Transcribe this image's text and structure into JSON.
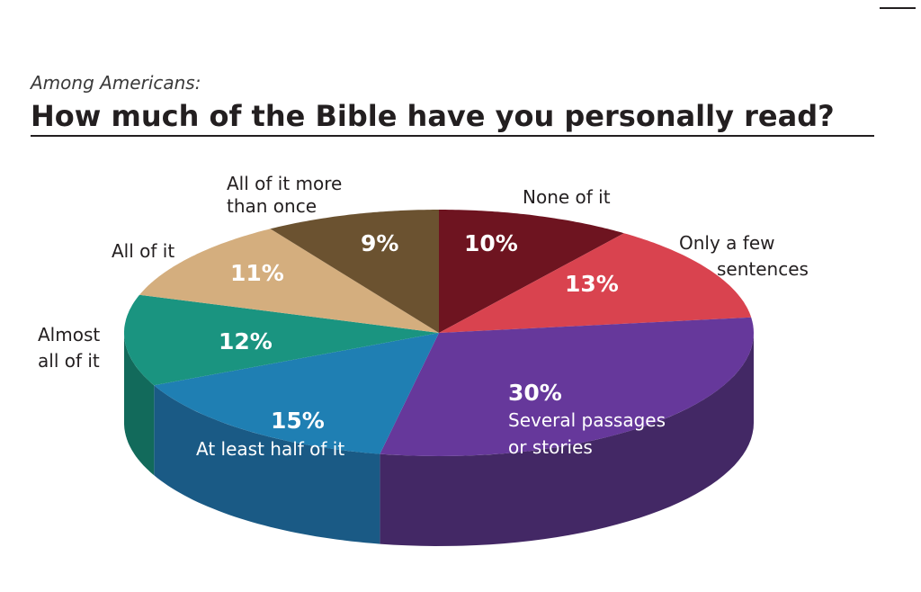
{
  "header": {
    "subtitle": "Among Americans:",
    "title": "How much of the Bible have you personally read?"
  },
  "chart_data": {
    "type": "pie",
    "subtitle": "Among Americans:",
    "title": "How much of the Bible have you personally read?",
    "slices": [
      {
        "label": "None of it",
        "value": 10,
        "value_label": "10%",
        "color": "#6e1420",
        "side_color": "#4a0d15"
      },
      {
        "label": "Only a few sentences",
        "value": 13,
        "value_label": "13%",
        "color": "#d9434f",
        "side_color": "#9c2f38"
      },
      {
        "label": "Several passages or stories",
        "value": 30,
        "value_label": "30%",
        "color": "#66389b",
        "side_color": "#432865"
      },
      {
        "label": "At least half of it",
        "value": 15,
        "value_label": "15%",
        "color": "#1f7fb3",
        "side_color": "#1a5a85"
      },
      {
        "label": "Almost all of it",
        "value": 12,
        "value_label": "12%",
        "color": "#1a9480",
        "side_color": "#126a5b"
      },
      {
        "label": "All of it",
        "value": 11,
        "value_label": "11%",
        "color": "#d4ae7e",
        "side_color": "#a5855e"
      },
      {
        "label": "All of it more than once",
        "value": 9,
        "value_label": "9%",
        "color": "#6b5230",
        "side_color": "#4a3920"
      }
    ]
  }
}
